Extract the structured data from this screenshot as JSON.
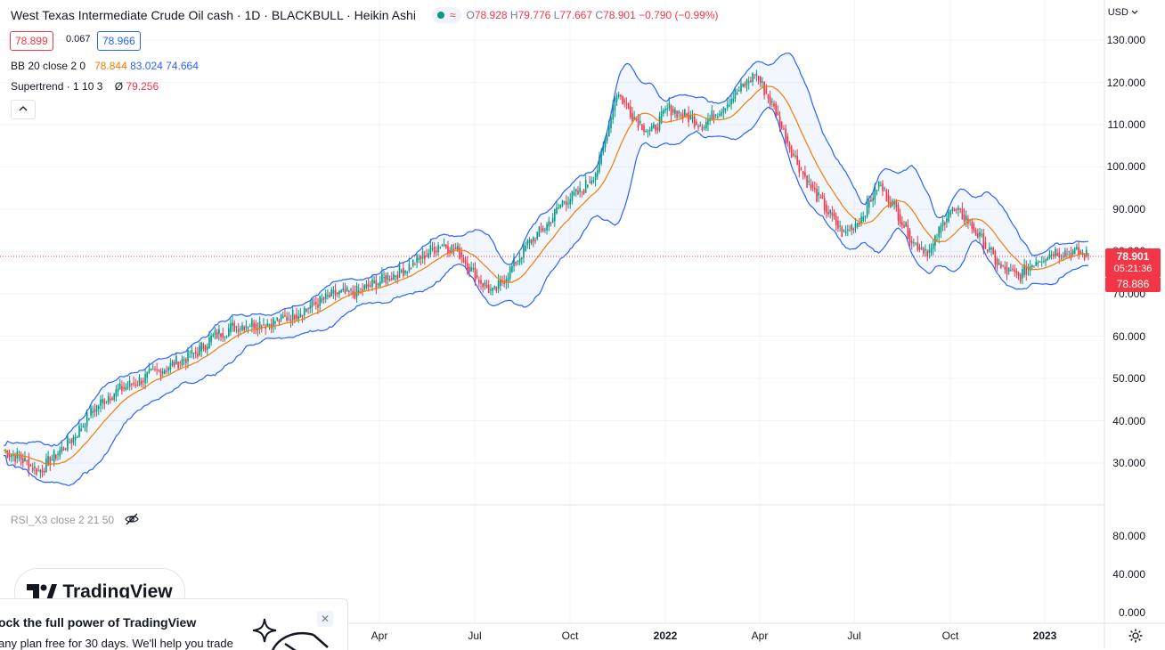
{
  "legend": {
    "symbol_title": "West Texas Intermediate Crude Oil cash · 1D · BLACKBULL · Heikin Ashi",
    "ohlc": [
      {
        "label": "O",
        "value": "78.928"
      },
      {
        "label": "H",
        "value": "79.776"
      },
      {
        "label": "L",
        "value": "77.667"
      },
      {
        "label": "C",
        "value": "78.901"
      }
    ],
    "change": "−0.790 (−0.99%)",
    "bid": "78.899",
    "spread": "0.067",
    "ask": "78.966",
    "bb": {
      "label": "BB 20 close 2 0",
      "basis": "78.844",
      "upper": "83.024",
      "lower": "74.664"
    },
    "supertrend": {
      "label": "Supertrend · 1 10 3",
      "symbol": "Ø",
      "value": "79.256"
    },
    "collapse_icon": "chevron-up-icon"
  },
  "price_axis": {
    "currency": "USD",
    "currency_icon": "chevron-down-icon",
    "ticks": [
      "130.000",
      "120.000",
      "110.000",
      "100.000",
      "90.000",
      "80.000",
      "70.000",
      "60.000",
      "50.000",
      "40.000",
      "30.000"
    ],
    "last_price": "78.901",
    "countdown": "05:21:36",
    "lower_marker": "78.886"
  },
  "rsi_panel": {
    "label": "RSI_X3 close 2 21 50",
    "visibility_icon": "eye-off-icon",
    "ticks": [
      "80.000",
      "40.000",
      "0.000"
    ]
  },
  "time_axis": {
    "labels": [
      {
        "text": "Apr",
        "bold": false
      },
      {
        "text": "Jul",
        "bold": false
      },
      {
        "text": "Oct",
        "bold": false
      },
      {
        "text": "2022",
        "bold": true
      },
      {
        "text": "Apr",
        "bold": false
      },
      {
        "text": "Jul",
        "bold": false
      },
      {
        "text": "Oct",
        "bold": false
      },
      {
        "text": "2023",
        "bold": true
      }
    ],
    "settings_icon": "gear-icon"
  },
  "branding": {
    "logo_text": "TradingView",
    "logo_icon": "tradingview-logo-icon"
  },
  "promo": {
    "title": "ock the full power of TradingView",
    "text": "any plan free for 30 days. We'll help you trade",
    "close_icon": "close-icon"
  },
  "colors": {
    "up": "#089981",
    "down": "#f23645",
    "bb_band": "#2962ff",
    "bb_basis": "#f57c00",
    "bb_fill": "#2962ff",
    "last_price": "#f23645"
  },
  "chart_data": {
    "type": "candlestick",
    "style": "Heikin Ashi",
    "timeframe": "1D",
    "y_range": [
      25,
      135
    ],
    "y_ticks": [
      130,
      120,
      110,
      100,
      90,
      80,
      70,
      60,
      50,
      40,
      30
    ],
    "x_labels": [
      "Apr",
      "Jul",
      "Oct",
      "2022",
      "Apr",
      "Jul",
      "Oct",
      "2023"
    ],
    "last_price": 78.901,
    "series": [
      {
        "name": "Close (approx.)",
        "values": [
          33,
          31,
          28,
          32,
          36,
          42,
          46,
          48,
          50,
          52,
          54,
          56,
          60,
          62,
          63,
          63,
          64,
          66,
          68,
          70,
          70,
          72,
          74,
          76,
          79,
          82,
          80,
          74,
          70,
          76,
          82,
          86,
          92,
          94,
          100,
          118,
          112,
          108,
          114,
          112,
          110,
          114,
          118,
          122,
          114,
          104,
          96,
          90,
          84,
          88,
          96,
          90,
          82,
          80,
          90,
          88,
          82,
          76,
          74,
          78,
          80,
          80,
          79
        ]
      },
      {
        "name": "BB 20 close 2 0",
        "values": [
          {
            "basis": 78.844,
            "upper": 83.024,
            "lower": 74.664
          }
        ]
      },
      {
        "name": "Supertrend",
        "values": [
          79.256
        ]
      }
    ]
  }
}
